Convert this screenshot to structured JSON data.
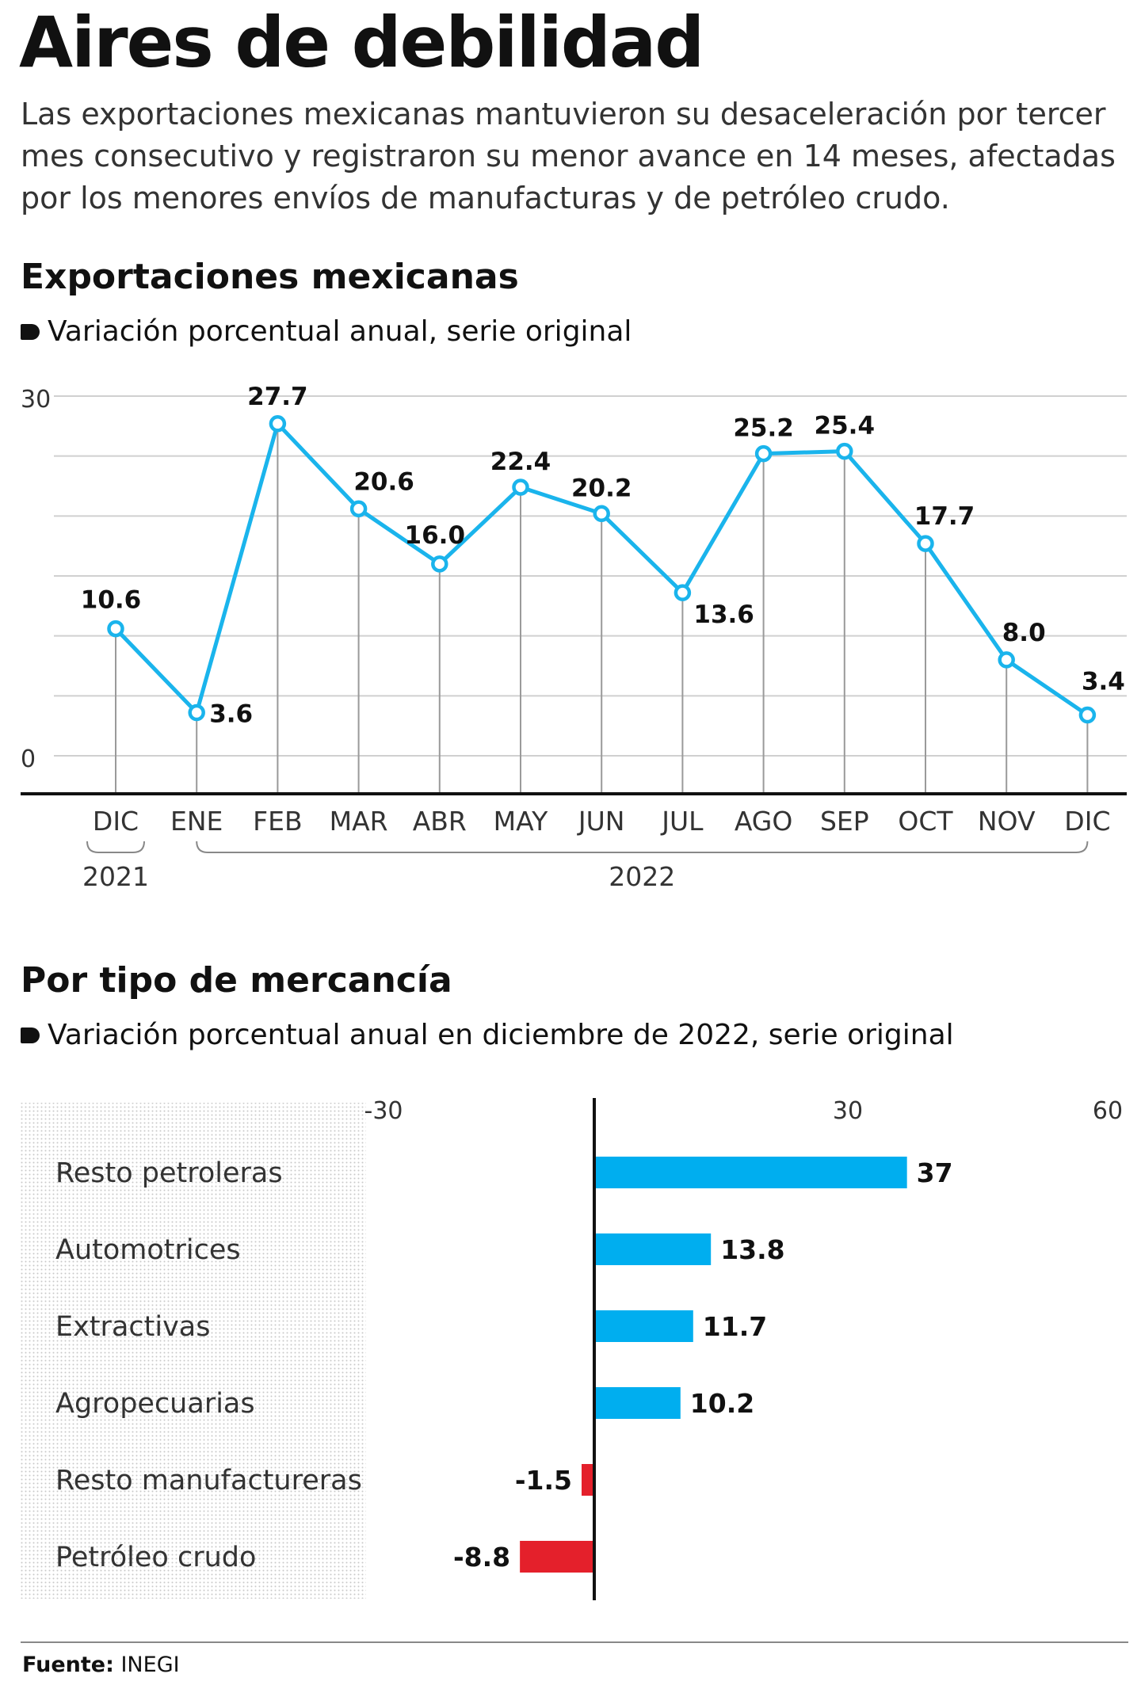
{
  "header": {
    "title": "Aires de debilidad",
    "intro": "Las exportaciones mexicanas mantuvieron su desaceleración por tercer mes consecutivo y registraron su menor avance en 14 meses, afectadas por los menores envíos de manufacturas y de petróleo crudo."
  },
  "section1": {
    "title": "Exportaciones mexicanas",
    "subtitle": "Variación porcentual anual, serie original"
  },
  "section2": {
    "title": "Por tipo de mercancía",
    "subtitle": "Variación porcentual anual en diciembre de 2022, serie original"
  },
  "source": {
    "label": "Fuente:",
    "value": "INEGI"
  },
  "colors": {
    "line": "#1ab4ec",
    "bar_positive": "#00aeef",
    "bar_negative": "#e4202b",
    "grid": "#d0d0d0"
  },
  "chart_data": [
    {
      "type": "line",
      "categories": [
        "DIC",
        "ENE",
        "FEB",
        "MAR",
        "ABR",
        "MAY",
        "JUN",
        "JUL",
        "AGO",
        "SEP",
        "OCT",
        "NOV",
        "DIC"
      ],
      "year_groups": [
        {
          "label": "2021",
          "from": 0,
          "to": 0
        },
        {
          "label": "2022",
          "from": 1,
          "to": 12
        }
      ],
      "series": [
        {
          "values": [
            10.6,
            3.6,
            27.7,
            20.6,
            16.0,
            22.4,
            20.2,
            13.6,
            25.2,
            25.4,
            17.7,
            8.0,
            3.4
          ]
        }
      ],
      "data_labels": [
        "10.6",
        "3.6",
        "27.7",
        "20.6",
        "16.0",
        "22.4",
        "20.2",
        "13.6",
        "25.2",
        "25.4",
        "17.7",
        "8.0",
        "3.4"
      ],
      "yticks": [
        "30",
        "0"
      ],
      "ylim": [
        -3,
        30
      ],
      "grid": true
    },
    {
      "type": "bar",
      "orientation": "horizontal",
      "categories": [
        "Resto petroleras",
        "Automotrices",
        "Extractivas",
        "Agropecuarias",
        "Resto manufactureras",
        "Petróleo crudo"
      ],
      "values": [
        37,
        13.8,
        11.7,
        10.2,
        -1.5,
        -8.8
      ],
      "data_labels": [
        "37",
        "13.8",
        "11.7",
        "10.2",
        "-1.5",
        "-8.8"
      ],
      "xticks": [
        "-30",
        "30",
        "60"
      ],
      "xlim": [
        -30,
        60
      ]
    }
  ]
}
